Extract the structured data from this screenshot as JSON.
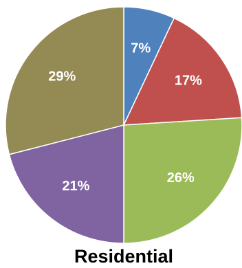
{
  "chart_data": {
    "type": "pie",
    "title": "Residential",
    "start_angle_deg": 0,
    "direction": "clockwise",
    "legend": "none",
    "slices": [
      {
        "label": "7%",
        "value": 7,
        "color": "#4F81BD"
      },
      {
        "label": "17%",
        "value": 17,
        "color": "#C0504D"
      },
      {
        "label": "26%",
        "value": 26,
        "color": "#9BBB59"
      },
      {
        "label": "21%",
        "value": 21,
        "color": "#8064A2"
      },
      {
        "label": "29%",
        "value": 29,
        "color": "#948A54"
      }
    ]
  }
}
